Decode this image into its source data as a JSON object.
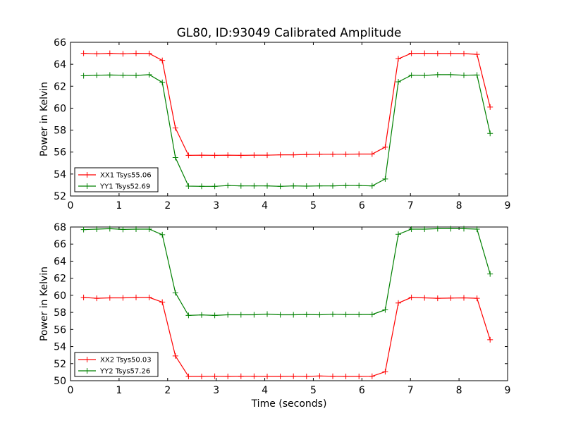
{
  "title": "GL80, ID:93049 Calibrated Amplitude",
  "chart_data": [
    {
      "type": "line",
      "ylabel": "Power in Kelvin",
      "xlabel": "",
      "xlim": [
        0,
        9
      ],
      "ylim": [
        52,
        66
      ],
      "xticks": [
        "0",
        "1",
        "2",
        "3",
        "4",
        "5",
        "6",
        "7",
        "8",
        "9"
      ],
      "yticks": [
        "52",
        "54",
        "56",
        "58",
        "60",
        "62",
        "64",
        "66"
      ],
      "legend_position": "lower-left",
      "x": [
        0.27,
        0.54,
        0.81,
        1.08,
        1.35,
        1.62,
        1.89,
        2.16,
        2.43,
        2.7,
        2.97,
        3.24,
        3.51,
        3.78,
        4.05,
        4.32,
        4.59,
        4.86,
        5.13,
        5.4,
        5.67,
        5.94,
        6.21,
        6.48,
        6.75,
        7.02,
        7.29,
        7.56,
        7.83,
        8.1,
        8.37,
        8.64
      ],
      "series": [
        {
          "name": "XX1 Tsys55.06",
          "color": "#ff0000",
          "values": [
            65.0,
            64.95,
            65.0,
            64.95,
            65.0,
            64.98,
            64.35,
            58.2,
            55.7,
            55.72,
            55.7,
            55.72,
            55.7,
            55.72,
            55.72,
            55.75,
            55.75,
            55.78,
            55.8,
            55.8,
            55.8,
            55.82,
            55.82,
            56.45,
            64.5,
            65.0,
            65.0,
            64.98,
            64.98,
            64.97,
            64.9,
            60.1
          ]
        },
        {
          "name": "YY1 Tsys52.69",
          "color": "#008000",
          "values": [
            62.95,
            63.0,
            63.02,
            63.0,
            62.98,
            63.05,
            62.35,
            55.5,
            52.9,
            52.88,
            52.88,
            52.95,
            52.92,
            52.92,
            52.92,
            52.88,
            52.92,
            52.9,
            52.92,
            52.92,
            52.95,
            52.95,
            52.92,
            53.55,
            62.4,
            63.0,
            62.98,
            63.05,
            63.05,
            63.0,
            63.02,
            57.7
          ]
        }
      ]
    },
    {
      "type": "line",
      "ylabel": "Power in Kelvin",
      "xlabel": "Time (seconds)",
      "xlim": [
        0,
        9
      ],
      "ylim": [
        50,
        68
      ],
      "xticks": [
        "0",
        "1",
        "2",
        "3",
        "4",
        "5",
        "6",
        "7",
        "8",
        "9"
      ],
      "yticks": [
        "50",
        "52",
        "54",
        "56",
        "58",
        "60",
        "62",
        "64",
        "66",
        "68"
      ],
      "legend_position": "lower-left",
      "x": [
        0.27,
        0.54,
        0.81,
        1.08,
        1.35,
        1.62,
        1.89,
        2.16,
        2.43,
        2.7,
        2.97,
        3.24,
        3.51,
        3.78,
        4.05,
        4.32,
        4.59,
        4.86,
        5.13,
        5.4,
        5.67,
        5.94,
        6.21,
        6.48,
        6.75,
        7.02,
        7.29,
        7.56,
        7.83,
        8.1,
        8.37,
        8.64
      ],
      "series": [
        {
          "name": "XX2 Tsys50.03",
          "color": "#ff0000",
          "values": [
            59.75,
            59.65,
            59.7,
            59.7,
            59.75,
            59.75,
            59.2,
            52.9,
            50.5,
            50.5,
            50.52,
            50.5,
            50.52,
            50.52,
            50.5,
            50.5,
            50.52,
            50.5,
            50.55,
            50.52,
            50.5,
            50.5,
            50.52,
            51.05,
            59.1,
            59.75,
            59.7,
            59.65,
            59.68,
            59.7,
            59.65,
            54.8
          ]
        },
        {
          "name": "YY2 Tsys57.26",
          "color": "#008000",
          "values": [
            67.7,
            67.75,
            67.8,
            67.72,
            67.75,
            67.75,
            67.1,
            60.3,
            57.65,
            57.7,
            57.65,
            57.72,
            57.72,
            57.72,
            57.8,
            57.72,
            57.72,
            57.75,
            57.72,
            57.78,
            57.75,
            57.75,
            57.75,
            58.3,
            67.15,
            67.75,
            67.75,
            67.8,
            67.8,
            67.8,
            67.75,
            62.5
          ]
        }
      ]
    }
  ]
}
